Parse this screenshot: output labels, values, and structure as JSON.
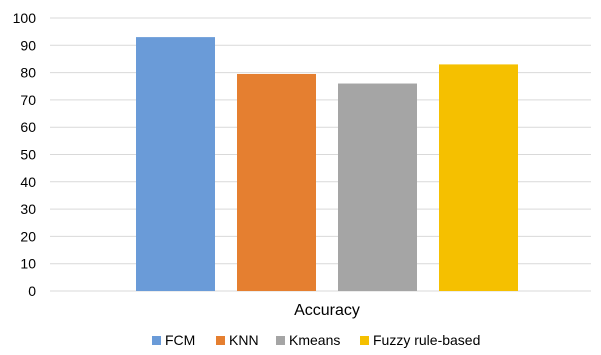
{
  "chart_data": {
    "type": "bar",
    "categories": [
      "Accuracy"
    ],
    "series": [
      {
        "name": "FCM",
        "values": [
          93
        ],
        "color": "#6a9bd8"
      },
      {
        "name": "KNN",
        "values": [
          79.5
        ],
        "color": "#e57f30"
      },
      {
        "name": "Kmeans",
        "values": [
          76
        ],
        "color": "#a5a5a5"
      },
      {
        "name": "Fuzzy rule-based",
        "values": [
          83
        ],
        "color": "#f5c000"
      }
    ],
    "title": "",
    "xlabel": "",
    "ylabel": "",
    "ylim": [
      0,
      100
    ],
    "yticks": [
      0,
      10,
      20,
      30,
      40,
      50,
      60,
      70,
      80,
      90,
      100
    ],
    "grid": true,
    "legend_position": "bottom"
  }
}
